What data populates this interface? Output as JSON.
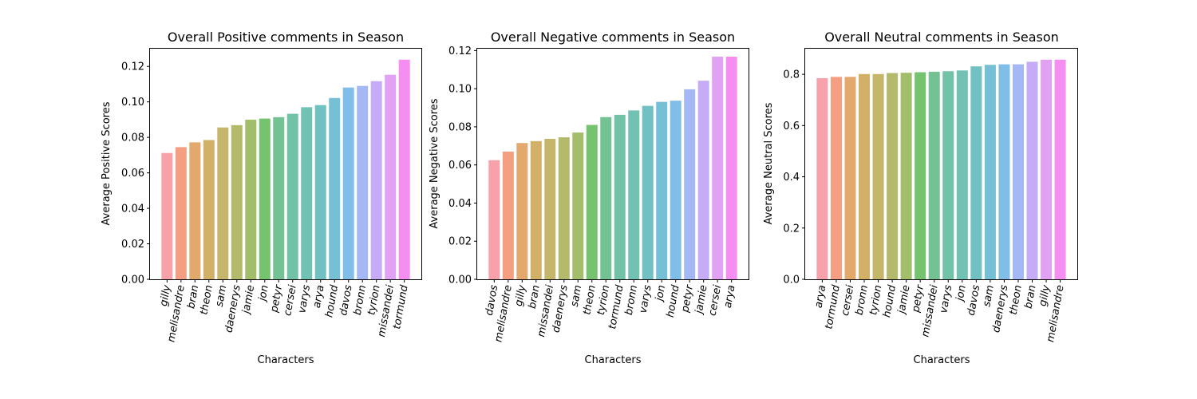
{
  "chart_data": [
    {
      "type": "bar",
      "title": "Overall Positive comments in Season",
      "xlabel": "Characters",
      "ylabel": "Average Positive Scores",
      "ylim": [
        0,
        0.13
      ],
      "yticks": [
        "0.00",
        "0.02",
        "0.04",
        "0.06",
        "0.08",
        "0.10",
        "0.12"
      ],
      "categories": [
        "gilly",
        "melisandre",
        "bran",
        "theon",
        "sam",
        "daenerys",
        "jamie",
        "jon",
        "petyr",
        "cersei",
        "varys",
        "arya",
        "hound",
        "davos",
        "bronn",
        "tyrion",
        "missandei",
        "tormund"
      ],
      "values": [
        0.0712,
        0.0745,
        0.0772,
        0.0785,
        0.0856,
        0.0869,
        0.09,
        0.0906,
        0.0914,
        0.0933,
        0.097,
        0.0982,
        0.1022,
        0.1081,
        0.109,
        0.1117,
        0.1153,
        0.1238
      ],
      "colors": [
        "#f7a1aa",
        "#f49e82",
        "#e2a86c",
        "#d2b068",
        "#c6b66b",
        "#b4ba6b",
        "#a3be6b",
        "#75c26f",
        "#74c294",
        "#71c2a7",
        "#71c2b3",
        "#72c1c2",
        "#76c0d6",
        "#80bee8",
        "#a3b8f5",
        "#c6acf6",
        "#e2a2f4",
        "#f68ef1"
      ]
    },
    {
      "type": "bar",
      "title": "Overall Negative comments in Season",
      "xlabel": "Characters",
      "ylabel": "Average Negative Scores",
      "ylim": [
        0,
        0.121
      ],
      "yticks": [
        "0.00",
        "0.02",
        "0.04",
        "0.06",
        "0.08",
        "0.10",
        "0.12"
      ],
      "categories": [
        "davos",
        "melisandre",
        "gilly",
        "bran",
        "missandei",
        "daenerys",
        "sam",
        "theon",
        "tyrion",
        "tormund",
        "bronn",
        "varys",
        "jon",
        "hound",
        "petyr",
        "jamie",
        "cersei",
        "arya"
      ],
      "values": [
        0.0625,
        0.067,
        0.0715,
        0.0725,
        0.0737,
        0.0745,
        0.077,
        0.081,
        0.0851,
        0.0863,
        0.0886,
        0.091,
        0.0931,
        0.0937,
        0.0997,
        0.1042,
        0.1168,
        0.1168
      ],
      "colors": [
        "#f7a1aa",
        "#f49e82",
        "#e2a86c",
        "#d2b068",
        "#c6b66b",
        "#b4ba6b",
        "#a3be6b",
        "#75c26f",
        "#74c294",
        "#71c2a7",
        "#71c2b3",
        "#72c1c2",
        "#76c0d6",
        "#80bee8",
        "#a3b8f5",
        "#c6acf6",
        "#e2a2f4",
        "#f68ef1"
      ]
    },
    {
      "type": "bar",
      "title": "Overall Neutral comments in Season",
      "xlabel": "Characters",
      "ylabel": "Average Neutral Scores",
      "ylim": [
        0,
        0.9
      ],
      "yticks": [
        "0.0",
        "0.2",
        "0.4",
        "0.6",
        "0.8"
      ],
      "categories": [
        "arya",
        "tormund",
        "cersei",
        "bronn",
        "tyrion",
        "hound",
        "jamie",
        "petyr",
        "missandei",
        "varys",
        "jon",
        "davos",
        "sam",
        "daenerys",
        "theon",
        "bran",
        "gilly",
        "melisandre"
      ],
      "values": [
        0.785,
        0.79,
        0.79,
        0.801,
        0.801,
        0.805,
        0.806,
        0.808,
        0.81,
        0.812,
        0.815,
        0.831,
        0.837,
        0.839,
        0.839,
        0.849,
        0.857,
        0.857
      ],
      "colors": [
        "#f7a1aa",
        "#f49e82",
        "#e2a86c",
        "#d2b068",
        "#c6b66b",
        "#b4ba6b",
        "#a3be6b",
        "#75c26f",
        "#74c294",
        "#71c2a7",
        "#71c2b3",
        "#72c1c2",
        "#76c0d6",
        "#80bee8",
        "#a3b8f5",
        "#c6acf6",
        "#e2a2f4",
        "#f68ef1"
      ]
    }
  ]
}
